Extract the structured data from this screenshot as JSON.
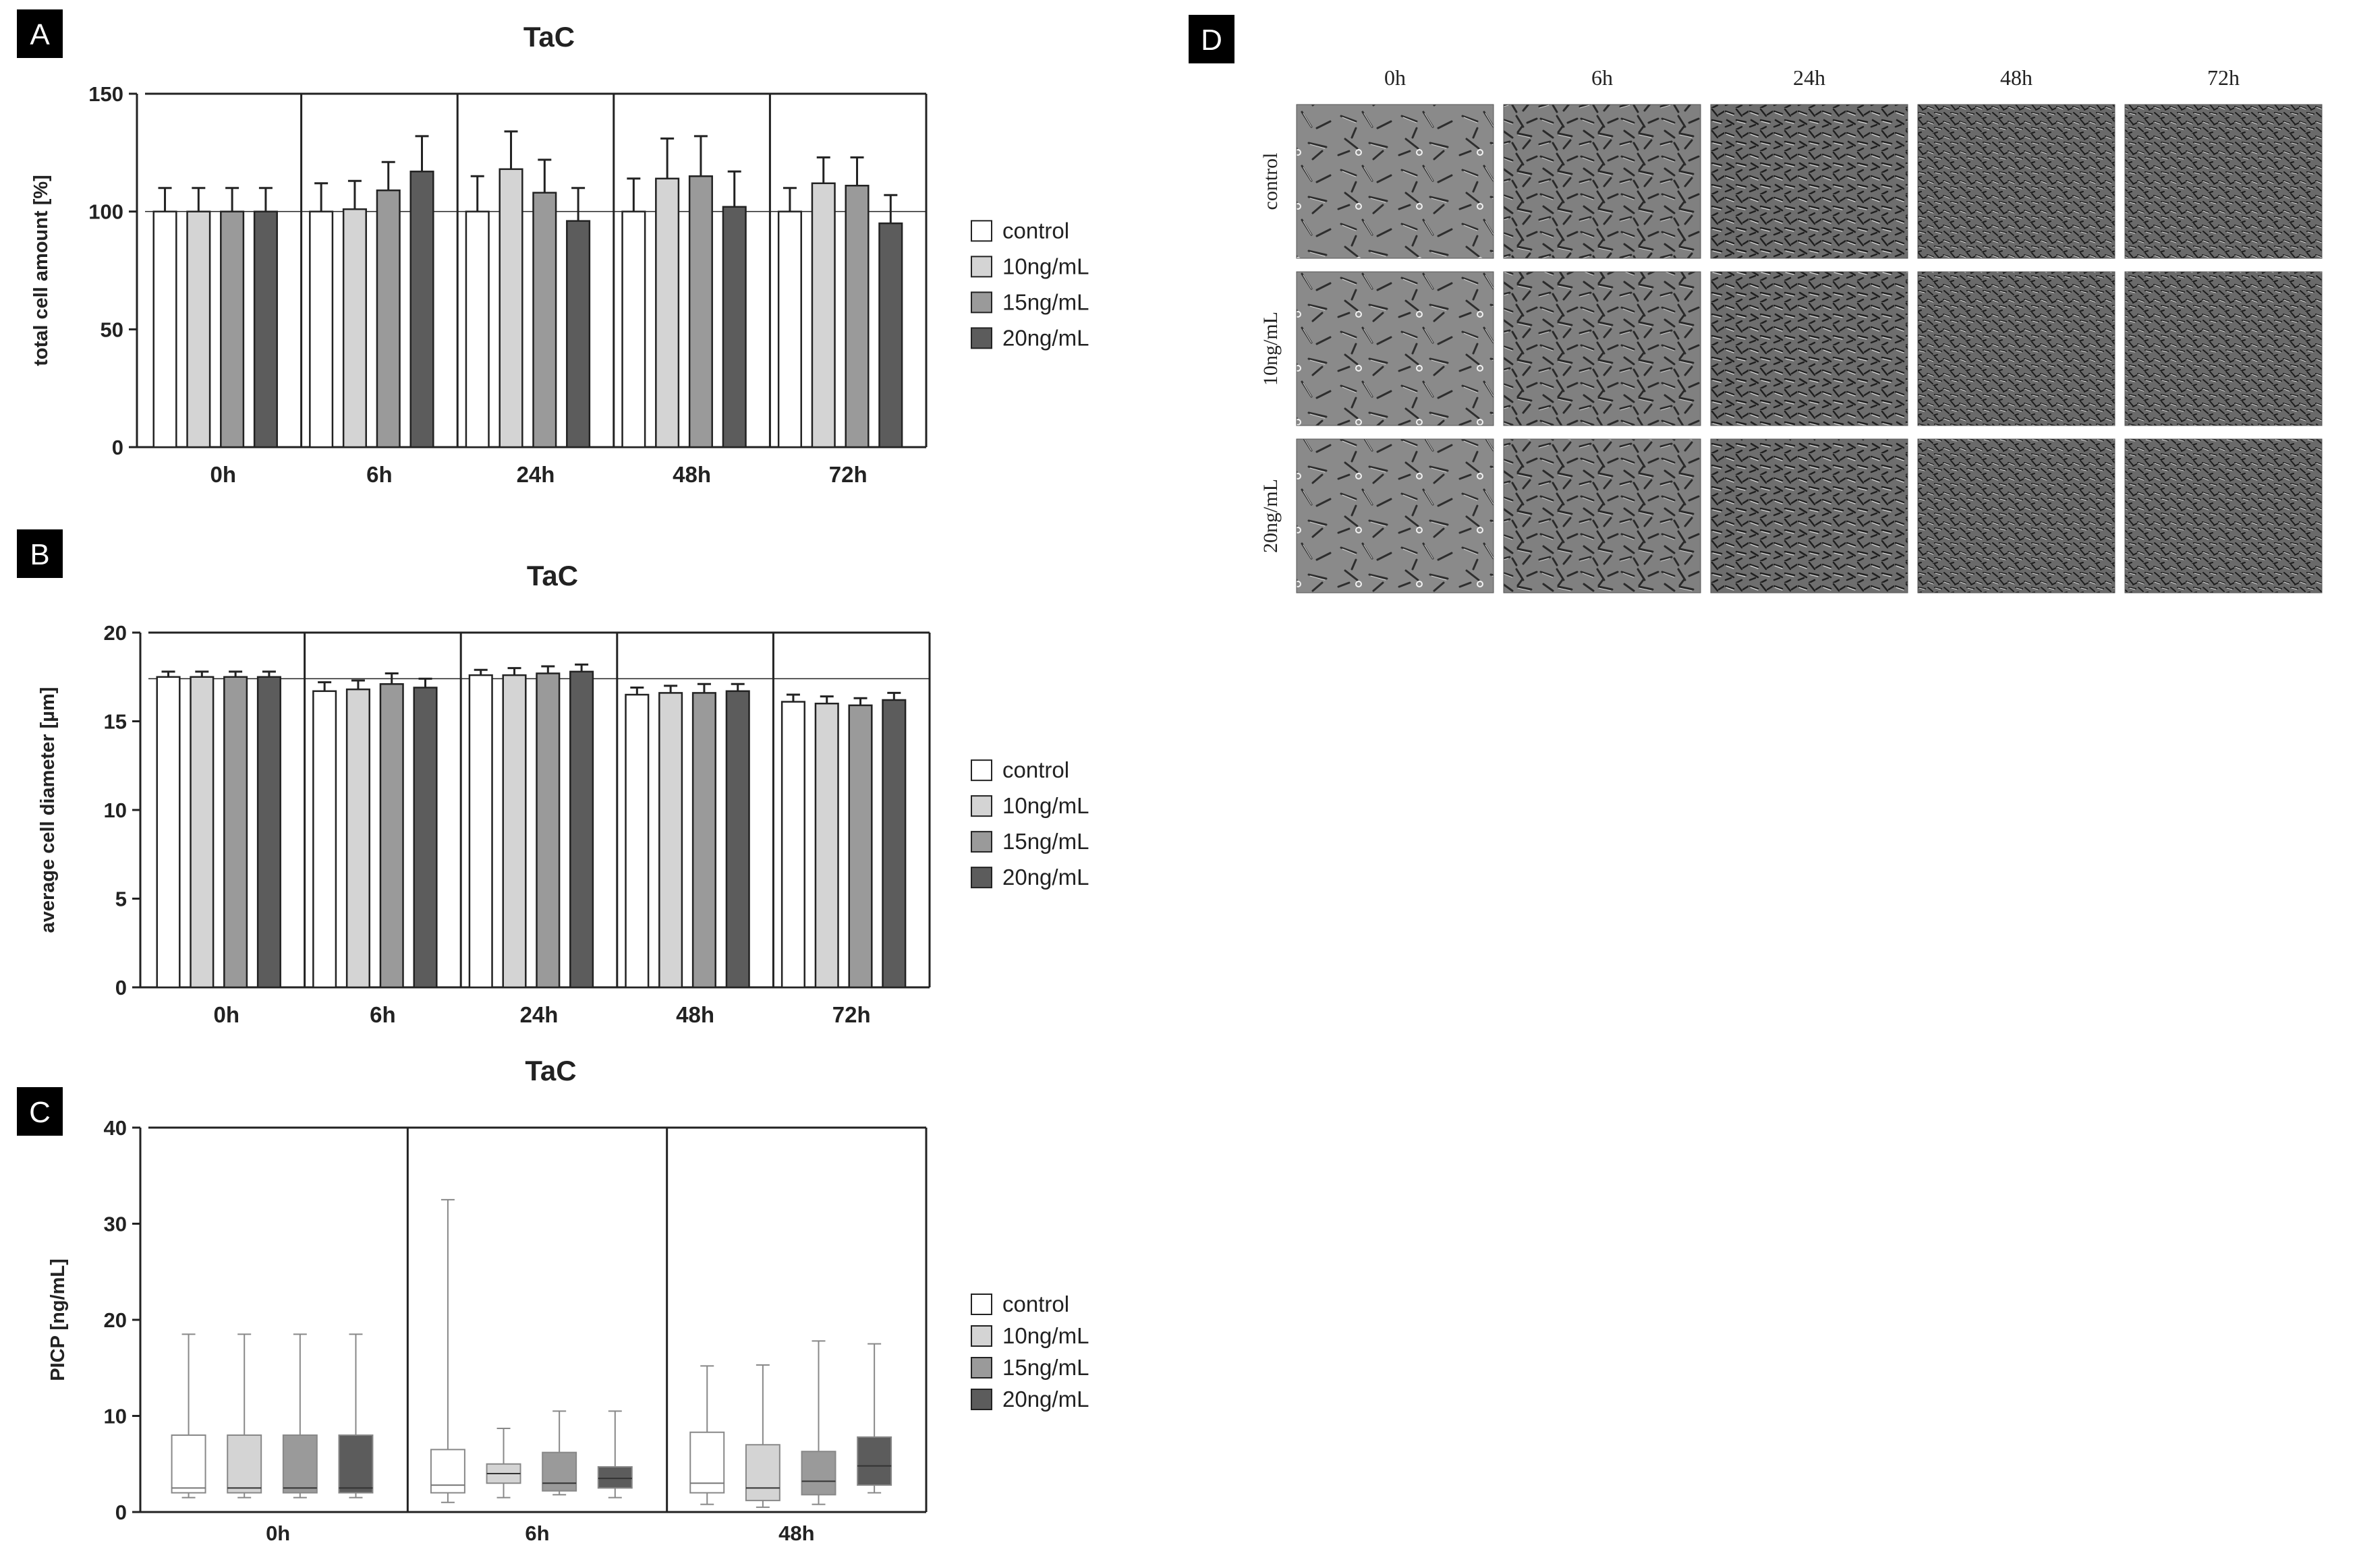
{
  "colors": {
    "control": "#ffffff",
    "c10": "#d4d4d4",
    "c15": "#9a9a9a",
    "c20": "#5c5c5c",
    "ink": "#222222",
    "badge_bg": "#000000",
    "badge_fg": "#ffffff"
  },
  "legend": [
    "control",
    "10ng/mL",
    "15ng/mL",
    "20ng/mL"
  ],
  "chart_data": [
    {
      "panel": "A",
      "type": "bar",
      "title": "TaC",
      "ylabel": "total cell amount [%]",
      "ylim": [
        0,
        150
      ],
      "yticks": [
        0,
        50,
        100,
        150
      ],
      "reference_line": 100,
      "categories": [
        "0h",
        "6h",
        "24h",
        "48h",
        "72h"
      ],
      "series": [
        {
          "name": "control",
          "values": [
            100,
            100,
            100,
            100,
            100
          ],
          "errors": [
            10,
            12,
            15,
            14,
            10
          ]
        },
        {
          "name": "10ng/mL",
          "values": [
            100,
            101,
            118,
            114,
            112
          ],
          "errors": [
            10,
            12,
            16,
            17,
            11
          ]
        },
        {
          "name": "15ng/mL",
          "values": [
            100,
            109,
            108,
            115,
            111
          ],
          "errors": [
            10,
            12,
            14,
            17,
            12
          ]
        },
        {
          "name": "20ng/mL",
          "values": [
            100,
            117,
            96,
            102,
            95
          ],
          "errors": [
            10,
            15,
            14,
            15,
            12
          ]
        }
      ]
    },
    {
      "panel": "B",
      "type": "bar",
      "title": "TaC",
      "ylabel": "average cell diameter [µm]",
      "ylim": [
        0,
        20
      ],
      "yticks": [
        0,
        5,
        10,
        15,
        20
      ],
      "reference_line": 17.4,
      "categories": [
        "0h",
        "6h",
        "24h",
        "48h",
        "72h"
      ],
      "series": [
        {
          "name": "control",
          "values": [
            17.5,
            16.7,
            17.6,
            16.5,
            16.1
          ],
          "errors": [
            0.3,
            0.5,
            0.3,
            0.4,
            0.4
          ]
        },
        {
          "name": "10ng/mL",
          "values": [
            17.5,
            16.8,
            17.6,
            16.6,
            16.0
          ],
          "errors": [
            0.3,
            0.5,
            0.4,
            0.4,
            0.4
          ]
        },
        {
          "name": "15ng/mL",
          "values": [
            17.5,
            17.1,
            17.7,
            16.6,
            15.9
          ],
          "errors": [
            0.3,
            0.6,
            0.4,
            0.5,
            0.4
          ]
        },
        {
          "name": "20ng/mL",
          "values": [
            17.5,
            16.9,
            17.8,
            16.7,
            16.2
          ],
          "errors": [
            0.3,
            0.5,
            0.4,
            0.4,
            0.4
          ]
        }
      ]
    },
    {
      "panel": "C",
      "type": "box",
      "title": "TaC",
      "ylabel": "PICP [ng/mL]",
      "ylim": [
        0,
        40
      ],
      "yticks": [
        0,
        10,
        20,
        30,
        40
      ],
      "categories": [
        "0h",
        "6h",
        "48h"
      ],
      "series": [
        {
          "name": "control",
          "boxes": [
            {
              "min": 1.5,
              "q1": 2.0,
              "median": 2.5,
              "q3": 8.0,
              "max": 18.5
            },
            {
              "min": 1.0,
              "q1": 2.0,
              "median": 2.8,
              "q3": 6.5,
              "max": 32.5
            },
            {
              "min": 0.8,
              "q1": 2.0,
              "median": 3.0,
              "q3": 8.3,
              "max": 15.2
            }
          ]
        },
        {
          "name": "10ng/mL",
          "boxes": [
            {
              "min": 1.5,
              "q1": 2.0,
              "median": 2.5,
              "q3": 8.0,
              "max": 18.5
            },
            {
              "min": 1.5,
              "q1": 3.0,
              "median": 4.0,
              "q3": 5.0,
              "max": 8.7
            },
            {
              "min": 0.5,
              "q1": 1.2,
              "median": 2.5,
              "q3": 7.0,
              "max": 15.3
            }
          ]
        },
        {
          "name": "15ng/mL",
          "boxes": [
            {
              "min": 1.5,
              "q1": 2.0,
              "median": 2.5,
              "q3": 8.0,
              "max": 18.5
            },
            {
              "min": 1.8,
              "q1": 2.2,
              "median": 3.0,
              "q3": 6.2,
              "max": 10.5
            },
            {
              "min": 0.8,
              "q1": 1.8,
              "median": 3.2,
              "q3": 6.3,
              "max": 17.8
            }
          ]
        },
        {
          "name": "20ng/mL",
          "boxes": [
            {
              "min": 1.5,
              "q1": 2.0,
              "median": 2.5,
              "q3": 8.0,
              "max": 18.5
            },
            {
              "min": 1.5,
              "q1": 2.5,
              "median": 3.5,
              "q3": 4.7,
              "max": 10.5
            },
            {
              "min": 2.0,
              "q1": 2.8,
              "median": 4.8,
              "q3": 7.8,
              "max": 17.5
            }
          ]
        }
      ]
    }
  ],
  "panel_d": {
    "label": "D",
    "columns": [
      "0h",
      "6h",
      "24h",
      "48h",
      "72h"
    ],
    "rows": [
      "control",
      "10ng/mL",
      "20ng/mL"
    ]
  }
}
